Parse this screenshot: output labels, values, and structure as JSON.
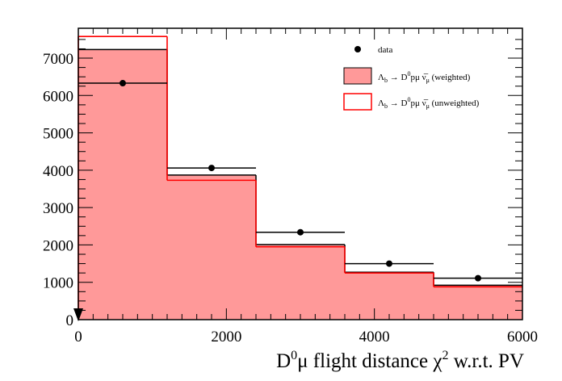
{
  "chart_data": {
    "type": "bar",
    "xlabel": "D⁰μ flight distance χ² w.r.t. PV",
    "ylabel": "",
    "xlim": [
      0,
      6000
    ],
    "ylim": [
      0,
      7800
    ],
    "x_ticks": [
      "0",
      "2000",
      "4000",
      "6000"
    ],
    "y_ticks": [
      "0",
      "1000",
      "2000",
      "3000",
      "4000",
      "5000",
      "6000",
      "7000"
    ],
    "bin_edges": [
      0,
      1200,
      2400,
      3600,
      4800,
      6000
    ],
    "series": [
      {
        "name": "data",
        "kind": "points",
        "values": [
          6330,
          4060,
          2340,
          1500,
          1110
        ],
        "color": "#000000"
      },
      {
        "name": "Λₐ → D⁰pμ ν̅μ (weighted)",
        "kind": "filled-histogram",
        "values": [
          7230,
          3870,
          2010,
          1270,
          920
        ],
        "color": "#ff9999",
        "edge": "#000000"
      },
      {
        "name": "Λₐ → D⁰pμ ν̅μ (unweighted)",
        "kind": "histogram",
        "values": [
          7580,
          3730,
          1950,
          1250,
          880
        ],
        "color": "#ff0000"
      }
    ],
    "legend_position": "top-right",
    "grid": false
  },
  "legend": {
    "data_label": "data",
    "weighted_label": "(weighted)",
    "unweighted_label": "(unweighted)"
  }
}
